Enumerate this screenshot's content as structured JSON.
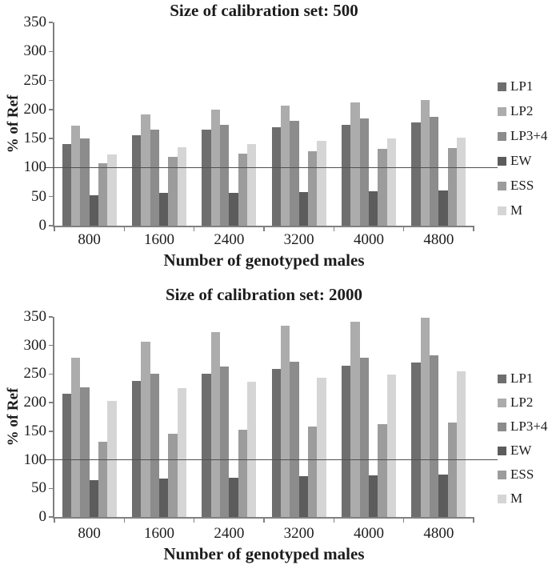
{
  "figure": {
    "background": "#ffffff",
    "text_color": "#1c1c1c",
    "axis_color": "#808080",
    "reference_line_color": "#4f4f4f"
  },
  "chart_data": [
    {
      "type": "bar",
      "title": "Size of calibration set: 500",
      "xlabel": "Number of genotyped males",
      "ylabel": "% of Ref",
      "categories": [
        "800",
        "1600",
        "2400",
        "3200",
        "4000",
        "4800"
      ],
      "series": [
        {
          "name": "LP1",
          "color": "#6e6e6e",
          "values": [
            141,
            156,
            165,
            170,
            174,
            178
          ]
        },
        {
          "name": "LP2",
          "color": "#acacac",
          "values": [
            172,
            191,
            200,
            207,
            212,
            216
          ]
        },
        {
          "name": "LP3+4",
          "color": "#8c8c8c",
          "values": [
            150,
            166,
            174,
            180,
            185,
            188
          ]
        },
        {
          "name": "EW",
          "color": "#5c5c5c",
          "values": [
            53,
            56,
            57,
            58,
            59,
            60
          ]
        },
        {
          "name": "ESS",
          "color": "#9c9c9c",
          "values": [
            107,
            118,
            124,
            128,
            132,
            134
          ]
        },
        {
          "name": "M",
          "color": "#d5d5d5",
          "values": [
            122,
            135,
            141,
            146,
            150,
            152
          ]
        }
      ],
      "ylim": [
        0,
        350
      ],
      "yticks": [
        0,
        50,
        100,
        150,
        200,
        250,
        300,
        350
      ],
      "reference_line": 100,
      "legend_position": "right",
      "grid": false
    },
    {
      "type": "bar",
      "title": "Size of calibration set: 2000",
      "xlabel": "Number of genotyped males",
      "ylabel": "% of Ref",
      "categories": [
        "800",
        "1600",
        "2400",
        "3200",
        "4000",
        "4800"
      ],
      "series": [
        {
          "name": "LP1",
          "color": "#6e6e6e",
          "values": [
            215,
            238,
            250,
            259,
            265,
            270
          ]
        },
        {
          "name": "LP2",
          "color": "#acacac",
          "values": [
            278,
            307,
            323,
            334,
            341,
            348
          ]
        },
        {
          "name": "LP3+4",
          "color": "#8c8c8c",
          "values": [
            227,
            250,
            263,
            271,
            278,
            283
          ]
        },
        {
          "name": "EW",
          "color": "#5c5c5c",
          "values": [
            64,
            67,
            69,
            72,
            73,
            74
          ]
        },
        {
          "name": "ESS",
          "color": "#9c9c9c",
          "values": [
            131,
            146,
            153,
            158,
            162,
            165
          ]
        },
        {
          "name": "M",
          "color": "#d5d5d5",
          "values": [
            203,
            226,
            236,
            244,
            249,
            255
          ]
        }
      ],
      "ylim": [
        0,
        350
      ],
      "yticks": [
        0,
        50,
        100,
        150,
        200,
        250,
        300,
        350
      ],
      "reference_line": 100,
      "legend_position": "right",
      "grid": false
    }
  ]
}
